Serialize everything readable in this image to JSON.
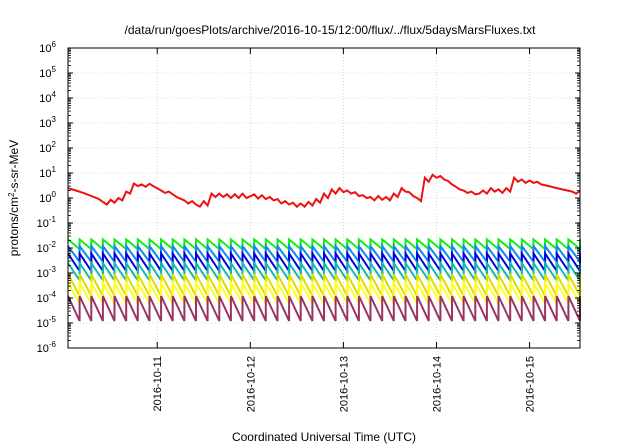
{
  "chart_data": {
    "type": "line",
    "title": "/data/run/goesPlots/archive/2016-10-15/12:00/flux/../flux/5daysMarsFluxes.txt",
    "xlabel": "Coordinated Universal Time (UTC)",
    "ylabel_parts": {
      "base": "protons/cm",
      "sup": "2",
      "rest": "-s-sr-MeV"
    },
    "yscale": "log",
    "ylim_exponents": [
      -6,
      6
    ],
    "y_ticks": [
      {
        "base": "10",
        "exp": "-6"
      },
      {
        "base": "10",
        "exp": "-5"
      },
      {
        "base": "10",
        "exp": "-4"
      },
      {
        "base": "10",
        "exp": "-3"
      },
      {
        "base": "10",
        "exp": "-2"
      },
      {
        "base": "10",
        "exp": "-1"
      },
      {
        "base": "10",
        "exp": "0"
      },
      {
        "base": "10",
        "exp": "1"
      },
      {
        "base": "10",
        "exp": "2"
      },
      {
        "base": "10",
        "exp": "3"
      },
      {
        "base": "10",
        "exp": "4"
      },
      {
        "base": "10",
        "exp": "5"
      },
      {
        "base": "10",
        "exp": "6"
      }
    ],
    "x_range_days": [
      "2016-10-10T01:00",
      "2016-10-15T13:00"
    ],
    "x_ticks": [
      "2016-10-11",
      "2016-10-12",
      "2016-10-13",
      "2016-10-14",
      "2016-10-15"
    ],
    "grid": true,
    "series": [
      {
        "color": "#ee1111",
        "points": [
          [
            "2016-10-10T01:00",
            2.5
          ],
          [
            "2016-10-10T03:00",
            2.0
          ],
          [
            "2016-10-10T05:00",
            1.6
          ],
          [
            "2016-10-10T07:00",
            1.2
          ],
          [
            "2016-10-10T09:00",
            0.9
          ],
          [
            "2016-10-10T10:00",
            0.7
          ],
          [
            "2016-10-10T11:00",
            0.55
          ],
          [
            "2016-10-10T12:00",
            0.85
          ],
          [
            "2016-10-10T13:00",
            0.65
          ],
          [
            "2016-10-10T14:00",
            1.0
          ],
          [
            "2016-10-10T15:00",
            0.8
          ],
          [
            "2016-10-10T16:00",
            1.8
          ],
          [
            "2016-10-10T17:00",
            1.5
          ],
          [
            "2016-10-10T18:00",
            3.8
          ],
          [
            "2016-10-10T19:00",
            3.0
          ],
          [
            "2016-10-10T20:00",
            3.5
          ],
          [
            "2016-10-10T21:00",
            2.8
          ],
          [
            "2016-10-10T22:00",
            3.7
          ],
          [
            "2016-10-10T23:00",
            3.0
          ],
          [
            "2016-10-11T01:00",
            2.0
          ],
          [
            "2016-10-11T02:00",
            1.6
          ],
          [
            "2016-10-11T03:00",
            1.8
          ],
          [
            "2016-10-11T05:00",
            1.1
          ],
          [
            "2016-10-11T07:00",
            0.8
          ],
          [
            "2016-10-11T08:00",
            0.6
          ],
          [
            "2016-10-11T09:00",
            0.75
          ],
          [
            "2016-10-11T10:00",
            0.55
          ],
          [
            "2016-10-11T11:00",
            0.45
          ],
          [
            "2016-10-11T12:00",
            0.75
          ],
          [
            "2016-10-11T13:00",
            0.5
          ],
          [
            "2016-10-11T14:00",
            1.5
          ],
          [
            "2016-10-11T15:00",
            1.1
          ],
          [
            "2016-10-11T16:00",
            1.5
          ],
          [
            "2016-10-11T17:00",
            1.1
          ],
          [
            "2016-10-11T18:00",
            1.4
          ],
          [
            "2016-10-11T19:00",
            1.0
          ],
          [
            "2016-10-11T20:00",
            1.4
          ],
          [
            "2016-10-11T21:00",
            1.0
          ],
          [
            "2016-10-11T22:00",
            1.5
          ],
          [
            "2016-10-11T23:00",
            1.0
          ],
          [
            "2016-10-12T01:00",
            1.4
          ],
          [
            "2016-10-12T02:00",
            0.95
          ],
          [
            "2016-10-12T03:00",
            1.3
          ],
          [
            "2016-10-12T04:00",
            0.9
          ],
          [
            "2016-10-12T05:00",
            1.1
          ],
          [
            "2016-10-12T06:00",
            0.8
          ],
          [
            "2016-10-12T07:00",
            0.9
          ],
          [
            "2016-10-12T08:00",
            0.6
          ],
          [
            "2016-10-12T09:00",
            0.75
          ],
          [
            "2016-10-12T10:00",
            0.55
          ],
          [
            "2016-10-12T11:00",
            0.65
          ],
          [
            "2016-10-12T12:00",
            0.45
          ],
          [
            "2016-10-12T13:00",
            0.6
          ],
          [
            "2016-10-12T14:00",
            0.45
          ],
          [
            "2016-10-12T15:00",
            0.7
          ],
          [
            "2016-10-12T16:00",
            0.5
          ],
          [
            "2016-10-12T17:00",
            0.9
          ],
          [
            "2016-10-12T18:00",
            0.65
          ],
          [
            "2016-10-12T19:00",
            1.5
          ],
          [
            "2016-10-12T20:00",
            1.0
          ],
          [
            "2016-10-12T21:00",
            2.2
          ],
          [
            "2016-10-12T22:00",
            1.5
          ],
          [
            "2016-10-12T23:00",
            2.5
          ],
          [
            "2016-10-13T00:00",
            1.7
          ],
          [
            "2016-10-13T01:00",
            2.0
          ],
          [
            "2016-10-13T02:00",
            1.5
          ],
          [
            "2016-10-13T03:00",
            1.7
          ],
          [
            "2016-10-13T04:00",
            1.2
          ],
          [
            "2016-10-13T05:00",
            1.3
          ],
          [
            "2016-10-13T06:00",
            1.0
          ],
          [
            "2016-10-13T07:00",
            1.1
          ],
          [
            "2016-10-13T08:00",
            0.8
          ],
          [
            "2016-10-13T09:00",
            1.2
          ],
          [
            "2016-10-13T10:00",
            0.85
          ],
          [
            "2016-10-13T11:00",
            1.1
          ],
          [
            "2016-10-13T12:00",
            0.8
          ],
          [
            "2016-10-13T13:00",
            1.5
          ],
          [
            "2016-10-13T14:00",
            1.1
          ],
          [
            "2016-10-13T15:00",
            2.5
          ],
          [
            "2016-10-13T16:00",
            1.8
          ],
          [
            "2016-10-13T17:00",
            1.7
          ],
          [
            "2016-10-13T18:00",
            1.2
          ],
          [
            "2016-10-13T19:00",
            1.0
          ],
          [
            "2016-10-13T20:00",
            0.75
          ],
          [
            "2016-10-13T21:00",
            6.5
          ],
          [
            "2016-10-13T22:00",
            4.5
          ],
          [
            "2016-10-13T23:00",
            8.5
          ],
          [
            "2016-10-14T00:00",
            6.5
          ],
          [
            "2016-10-14T01:00",
            7.5
          ],
          [
            "2016-10-14T02:00",
            5.5
          ],
          [
            "2016-10-14T03:00",
            4.8
          ],
          [
            "2016-10-14T04:00",
            3.5
          ],
          [
            "2016-10-14T05:00",
            2.8
          ],
          [
            "2016-10-14T06:00",
            2.2
          ],
          [
            "2016-10-14T07:00",
            2.0
          ],
          [
            "2016-10-14T08:00",
            1.6
          ],
          [
            "2016-10-14T09:00",
            1.8
          ],
          [
            "2016-10-14T10:00",
            1.4
          ],
          [
            "2016-10-14T11:00",
            1.5
          ],
          [
            "2016-10-14T12:00",
            2.0
          ],
          [
            "2016-10-14T13:00",
            1.5
          ],
          [
            "2016-10-14T14:00",
            2.5
          ],
          [
            "2016-10-14T15:00",
            1.8
          ],
          [
            "2016-10-14T16:00",
            2.2
          ],
          [
            "2016-10-14T17:00",
            1.6
          ],
          [
            "2016-10-14T18:00",
            2.5
          ],
          [
            "2016-10-14T19:00",
            1.8
          ],
          [
            "2016-10-14T20:00",
            6.5
          ],
          [
            "2016-10-14T21:00",
            4.5
          ],
          [
            "2016-10-14T22:00",
            5.5
          ],
          [
            "2016-10-14T23:00",
            4.0
          ],
          [
            "2016-10-15T00:00",
            5.0
          ],
          [
            "2016-10-15T01:00",
            4.0
          ],
          [
            "2016-10-15T02:00",
            4.5
          ],
          [
            "2016-10-15T03:00",
            3.5
          ],
          [
            "2016-10-15T05:00",
            3.0
          ],
          [
            "2016-10-15T07:00",
            2.5
          ],
          [
            "2016-10-15T09:00",
            2.1
          ],
          [
            "2016-10-15T11:00",
            1.8
          ],
          [
            "2016-10-15T12:00",
            1.5
          ],
          [
            "2016-10-15T13:00",
            1.9
          ]
        ]
      },
      {
        "color": "#11ee11",
        "sawtooth": {
          "high": 0.022,
          "low": 0.009,
          "period_h": 3,
          "x_end": "2016-10-15T13:00"
        }
      },
      {
        "color": "#1188ee",
        "sawtooth": {
          "high": 0.012,
          "low": 0.0028,
          "period_h": 3,
          "x_end": "2016-10-15T13:00"
        }
      },
      {
        "color": "#0000dd",
        "sawtooth": {
          "high": 0.006,
          "low": 0.0012,
          "period_h": 3,
          "x_end": "2016-10-15T13:00"
        }
      },
      {
        "color": "#11bbaa",
        "sawtooth": {
          "high": 0.0025,
          "low": 0.0005,
          "period_h": 3,
          "x_end": "2016-10-15T13:00"
        }
      },
      {
        "color": "#dddd00",
        "sawtooth": {
          "high": 0.0009,
          "low": 0.00012,
          "period_h": 3,
          "x_end": "2016-10-15T13:00"
        }
      },
      {
        "color": "#ffff22",
        "sawtooth": {
          "high": 0.0004,
          "low": 6e-05,
          "period_h": 3,
          "x_end": "2016-10-15T13:00"
        }
      },
      {
        "color": "#993366",
        "sawtooth": {
          "high": 0.00012,
          "low": 1.2e-05,
          "period_h": 3,
          "x_end": "2016-10-15T13:00"
        }
      }
    ]
  }
}
